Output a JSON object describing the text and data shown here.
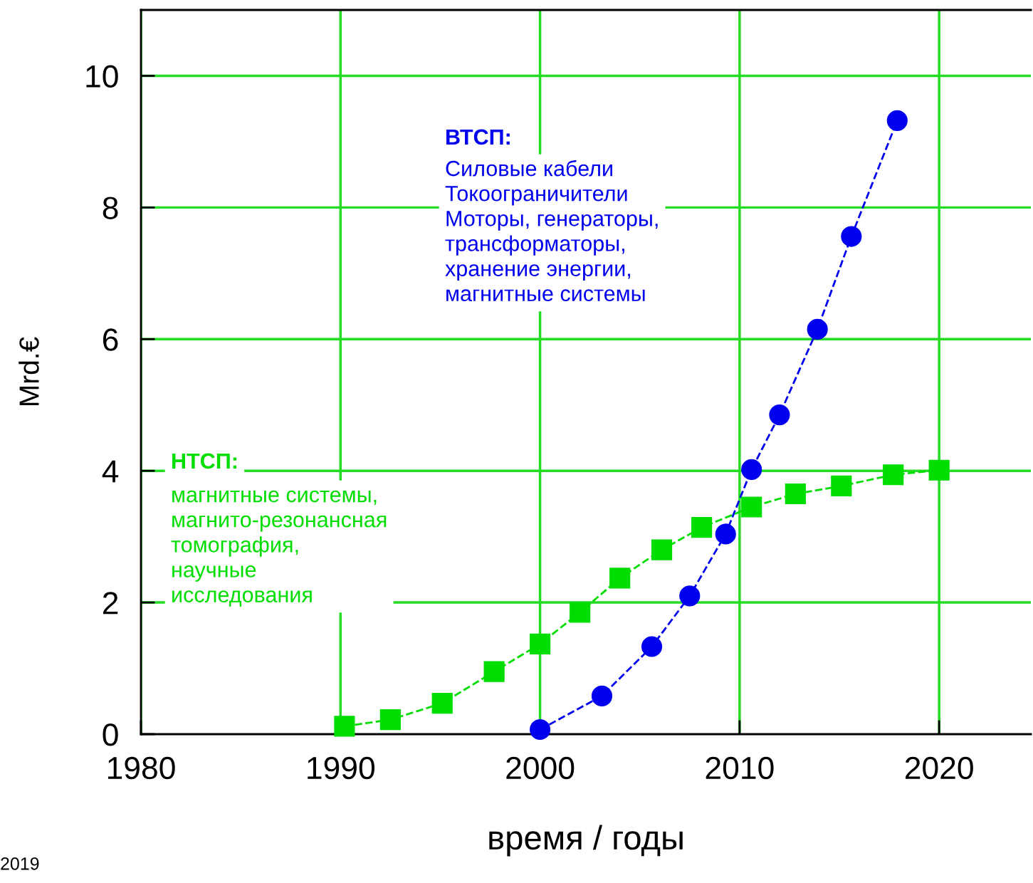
{
  "chart_data": {
    "type": "line",
    "xlabel": "время / годы",
    "ylabel": "Mrd.€",
    "xlim": [
      1980,
      2024.6
    ],
    "ylim": [
      0,
      11
    ],
    "xticks": [
      1980,
      1990,
      2000,
      2010,
      2020
    ],
    "yticks": [
      0,
      2,
      4,
      6,
      8,
      10
    ],
    "grid": true,
    "legend": false,
    "line_style": "dashed",
    "series": [
      {
        "color": "#0000ee",
        "marker": "circle",
        "x": [
          2000,
          2003.1,
          2005.6,
          2007.5,
          2009.3,
          2010.6,
          2012.0,
          2013.9,
          2015.6,
          2017.9
        ],
        "values": [
          0.07,
          0.58,
          1.33,
          2.1,
          3.04,
          4.02,
          4.85,
          6.15,
          7.56,
          9.32
        ]
      },
      {
        "color": "#00dd00",
        "marker": "square",
        "x": [
          1990.2,
          1992.5,
          1995.1,
          1997.7,
          2000,
          2002,
          2004,
          2006.1,
          2008.1,
          2010.6,
          2012.8,
          2015.1,
          2017.7,
          2020
        ],
        "values": [
          0.12,
          0.22,
          0.47,
          0.95,
          1.37,
          1.85,
          2.37,
          2.8,
          3.14,
          3.45,
          3.65,
          3.77,
          3.94,
          4.01
        ]
      }
    ],
    "annotations": [
      "ВТСП:",
      "Силовые кабели\nТокоограничители\nМоторы, генераторы,\nтрансформаторы,\nхранение энергии,\nмагнитные системы",
      "НТСП:",
      "магнитные системы,\nмагнито-резонансная\nтомография,\nнаучные\nисследования",
      "2019"
    ]
  }
}
